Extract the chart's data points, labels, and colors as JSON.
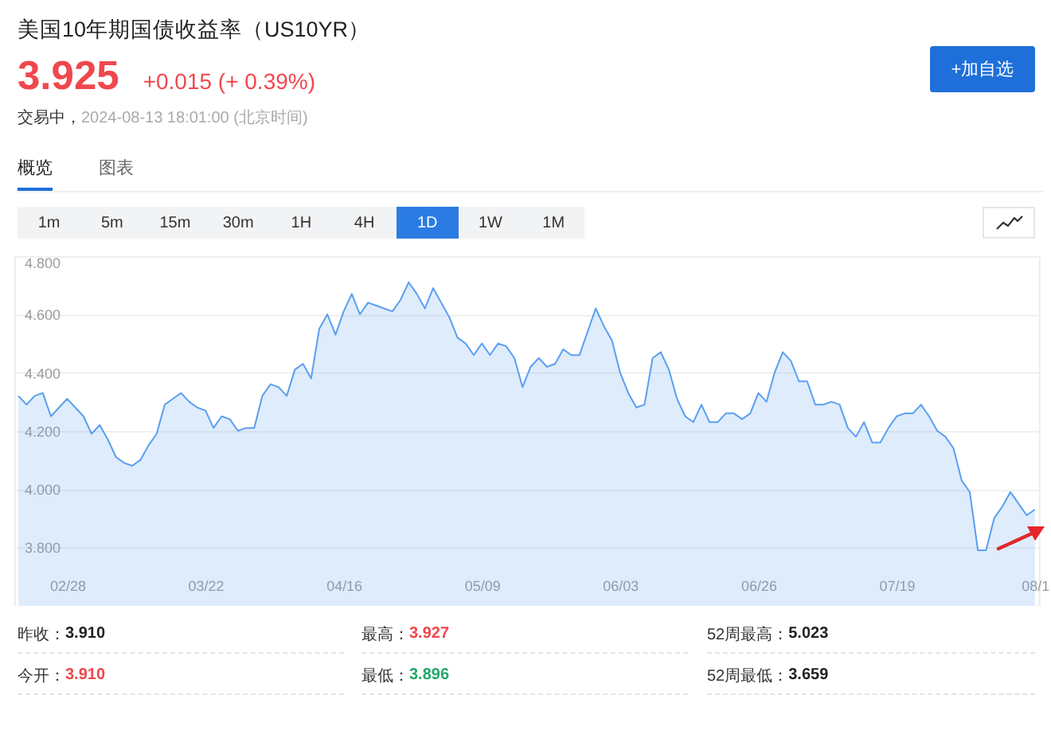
{
  "chart_data": [
    {
      "type": "other",
      "title": "美国10年期国债收益率（US10YR）",
      "annotations": [
        "3.925",
        "+0.015 (+ 0.39%)",
        "交易中，",
        "2024-08-13 18:01:00 (北京时间)",
        "+加自选",
        "概览",
        "图表",
        "1m",
        "5m",
        "15m",
        "30m",
        "1H",
        "4H",
        "1D",
        "1W",
        "1M"
      ]
    },
    {
      "type": "area",
      "categories": [
        null,
        null,
        null,
        null,
        null,
        null,
        "02/28",
        null,
        null,
        null,
        null,
        null,
        null,
        null,
        null,
        null,
        null,
        null,
        null,
        null,
        null,
        null,
        null,
        "03/22",
        null,
        null,
        null,
        null,
        null,
        null,
        null,
        null,
        null,
        null,
        null,
        null,
        null,
        null,
        null,
        null,
        "04/16",
        null,
        null,
        null,
        null,
        null,
        null,
        null,
        null,
        null,
        null,
        null,
        null,
        null,
        null,
        null,
        null,
        "05/09",
        null,
        null,
        null,
        null,
        null,
        null,
        null,
        null,
        null,
        null,
        null,
        null,
        null,
        null,
        null,
        null,
        "06/03",
        null,
        null,
        null,
        null,
        null,
        null,
        null,
        null,
        null,
        null,
        null,
        null,
        null,
        null,
        null,
        null,
        "06/26",
        null,
        null,
        null,
        null,
        null,
        null,
        null,
        null,
        null,
        null,
        null,
        null,
        null,
        null,
        null,
        null,
        "07/19",
        null,
        null,
        null,
        null,
        null,
        null,
        null,
        null,
        null,
        null,
        null,
        null,
        null,
        null,
        null,
        null,
        "08/1"
      ],
      "series": [
        {
          "color": "#5a9ff0",
          "values": [
            4.32,
            4.29,
            4.32,
            4.33,
            4.25,
            4.28,
            4.31,
            4.28,
            4.25,
            4.19,
            4.22,
            4.17,
            4.11,
            4.09,
            4.08,
            4.1,
            4.15,
            4.19,
            4.29,
            4.31,
            4.33,
            4.3,
            4.28,
            4.27,
            4.21,
            4.25,
            4.24,
            4.2,
            4.21,
            4.21,
            4.32,
            4.36,
            4.35,
            4.32,
            4.41,
            4.43,
            4.38,
            4.55,
            4.6,
            4.53,
            4.61,
            4.67,
            4.6,
            4.64,
            4.63,
            4.62,
            4.61,
            4.65,
            4.71,
            4.67,
            4.62,
            4.69,
            4.64,
            4.59,
            4.52,
            4.5,
            4.46,
            4.5,
            4.46,
            4.5,
            4.49,
            4.45,
            4.35,
            4.42,
            4.45,
            4.42,
            4.43,
            4.48,
            4.46,
            4.46,
            4.54,
            4.62,
            4.56,
            4.51,
            4.4,
            4.33,
            4.28,
            4.29,
            4.45,
            4.47,
            4.41,
            4.31,
            4.25,
            4.23,
            4.29,
            4.23,
            4.23,
            4.26,
            4.26,
            4.24,
            4.26,
            4.33,
            4.3,
            4.4,
            4.47,
            4.44,
            4.37,
            4.37,
            4.29,
            4.29,
            4.3,
            4.29,
            4.21,
            4.18,
            4.23,
            4.16,
            4.16,
            4.21,
            4.25,
            4.26,
            4.26,
            4.29,
            4.25,
            4.2,
            4.18,
            4.14,
            4.03,
            3.99,
            3.79,
            3.79,
            3.9,
            3.94,
            3.99,
            3.95,
            3.91,
            3.93
          ]
        }
      ],
      "ylim": [
        3.6,
        4.8
      ],
      "yticks": [
        {
          "value": 3.8,
          "label": "3.800"
        },
        {
          "value": 4.0,
          "label": "4.000"
        },
        {
          "value": 4.2,
          "label": "4.200"
        },
        {
          "value": 4.4,
          "label": "4.400"
        },
        {
          "value": 4.6,
          "label": "4.600"
        },
        {
          "value": 4.8,
          "label": "4.800"
        }
      ],
      "grid": "y"
    },
    {
      "type": "other",
      "annotations": [
        "昨收：",
        "3.910",
        "最高：",
        "3.927",
        "52周最高：",
        "5.023",
        "今开：",
        "3.910",
        "最低：",
        "3.896",
        "52周最低：",
        "3.659"
      ]
    }
  ]
}
